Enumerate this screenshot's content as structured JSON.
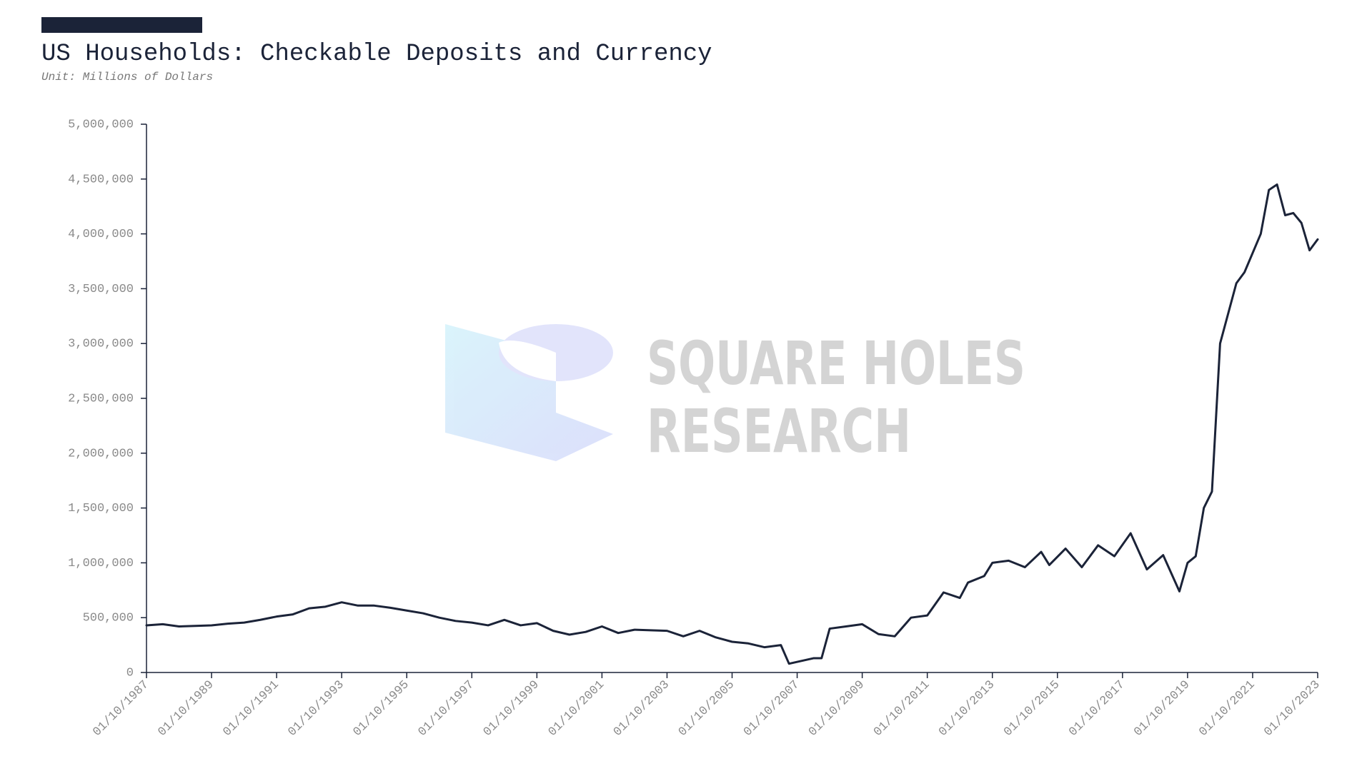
{
  "chart_data": {
    "type": "line",
    "title": "US Households: Checkable Deposits and Currency",
    "subtitle": "Unit: Millions of Dollars",
    "watermark": [
      "SQUARE HOLES",
      "RESEARCH"
    ],
    "x": [
      "01/10/1987",
      "01/04/1988",
      "01/10/1988",
      "01/04/1989",
      "01/10/1989",
      "01/04/1990",
      "01/10/1990",
      "01/04/1991",
      "01/10/1991",
      "01/04/1992",
      "01/10/1992",
      "01/04/1993",
      "01/10/1993",
      "01/04/1994",
      "01/10/1994",
      "01/04/1995",
      "01/10/1995",
      "01/04/1996",
      "01/10/1996",
      "01/04/1997",
      "01/10/1997",
      "01/04/1998",
      "01/10/1998",
      "01/04/1999",
      "01/10/1999",
      "01/04/2000",
      "01/10/2000",
      "01/04/2001",
      "01/10/2001",
      "01/04/2002",
      "01/10/2002",
      "01/04/2003",
      "01/10/2003",
      "01/04/2004",
      "01/10/2004",
      "01/04/2005",
      "01/10/2005",
      "01/04/2006",
      "01/10/2006",
      "01/04/2007",
      "01/07/2007",
      "01/04/2008",
      "01/07/2008",
      "01/10/2008",
      "01/04/2009",
      "01/10/2009",
      "01/04/2010",
      "01/10/2010",
      "01/04/2011",
      "01/10/2011",
      "01/04/2012",
      "01/10/2012",
      "01/01/2013",
      "01/07/2013",
      "01/10/2013",
      "01/04/2014",
      "01/10/2014",
      "01/04/2015",
      "01/07/2015",
      "01/01/2016",
      "01/07/2016",
      "01/01/2017",
      "01/07/2017",
      "01/01/2018",
      "01/07/2018",
      "01/01/2019",
      "01/07/2019",
      "01/10/2019",
      "01/01/2020",
      "01/04/2020",
      "01/07/2020",
      "01/10/2020",
      "01/04/2021",
      "01/07/2021",
      "01/01/2022",
      "01/04/2022",
      "01/07/2022",
      "01/10/2022",
      "01/01/2023",
      "01/04/2023",
      "01/07/2023",
      "01/10/2023"
    ],
    "series": [
      {
        "name": "Checkable Deposits and Currency",
        "color": "#1b2338",
        "values": [
          430000,
          440000,
          420000,
          425000,
          430000,
          445000,
          455000,
          480000,
          510000,
          530000,
          585000,
          600000,
          640000,
          610000,
          610000,
          590000,
          565000,
          540000,
          500000,
          470000,
          455000,
          430000,
          480000,
          430000,
          450000,
          380000,
          345000,
          370000,
          420000,
          360000,
          390000,
          385000,
          380000,
          330000,
          380000,
          320000,
          280000,
          265000,
          230000,
          250000,
          80000,
          130000,
          130000,
          400000,
          420000,
          440000,
          350000,
          330000,
          500000,
          520000,
          730000,
          680000,
          820000,
          880000,
          1000000,
          1020000,
          960000,
          1100000,
          980000,
          1130000,
          960000,
          1160000,
          1060000,
          1270000,
          940000,
          1070000,
          740000,
          1000000,
          1060000,
          1500000,
          1650000,
          3000000,
          3550000,
          3650000,
          4000000,
          4400000,
          4450000,
          4170000,
          4190000,
          4100000,
          3850000,
          3950000
        ]
      }
    ],
    "xlim": [
      "01/10/1987",
      "01/10/2023"
    ],
    "xticks": [
      "01/10/1987",
      "01/10/1989",
      "01/10/1991",
      "01/10/1993",
      "01/10/1995",
      "01/10/1997",
      "01/10/1999",
      "01/10/2001",
      "01/10/2003",
      "01/10/2005",
      "01/10/2007",
      "01/10/2009",
      "01/10/2011",
      "01/10/2013",
      "01/10/2015",
      "01/10/2017",
      "01/10/2019",
      "01/10/2021",
      "01/10/2023"
    ],
    "ylim": [
      0,
      5000000
    ],
    "yticks": [
      0,
      {
        "value": 500000,
        "label": "500,000"
      },
      {
        "value": 1000000,
        "label": "1,000,000"
      },
      {
        "value": 1500000,
        "label": "1,500,000"
      },
      {
        "value": 2000000,
        "label": "2,000,000"
      },
      {
        "value": 2500000,
        "label": "2,500,000"
      },
      {
        "value": 3000000,
        "label": "3,000,000"
      },
      {
        "value": 3500000,
        "label": "3,500,000"
      },
      {
        "value": 4000000,
        "label": "4,000,000"
      },
      {
        "value": 4500000,
        "label": "4,500,000"
      },
      {
        "value": 5000000,
        "label": "5,000,000"
      }
    ],
    "grid": false
  }
}
